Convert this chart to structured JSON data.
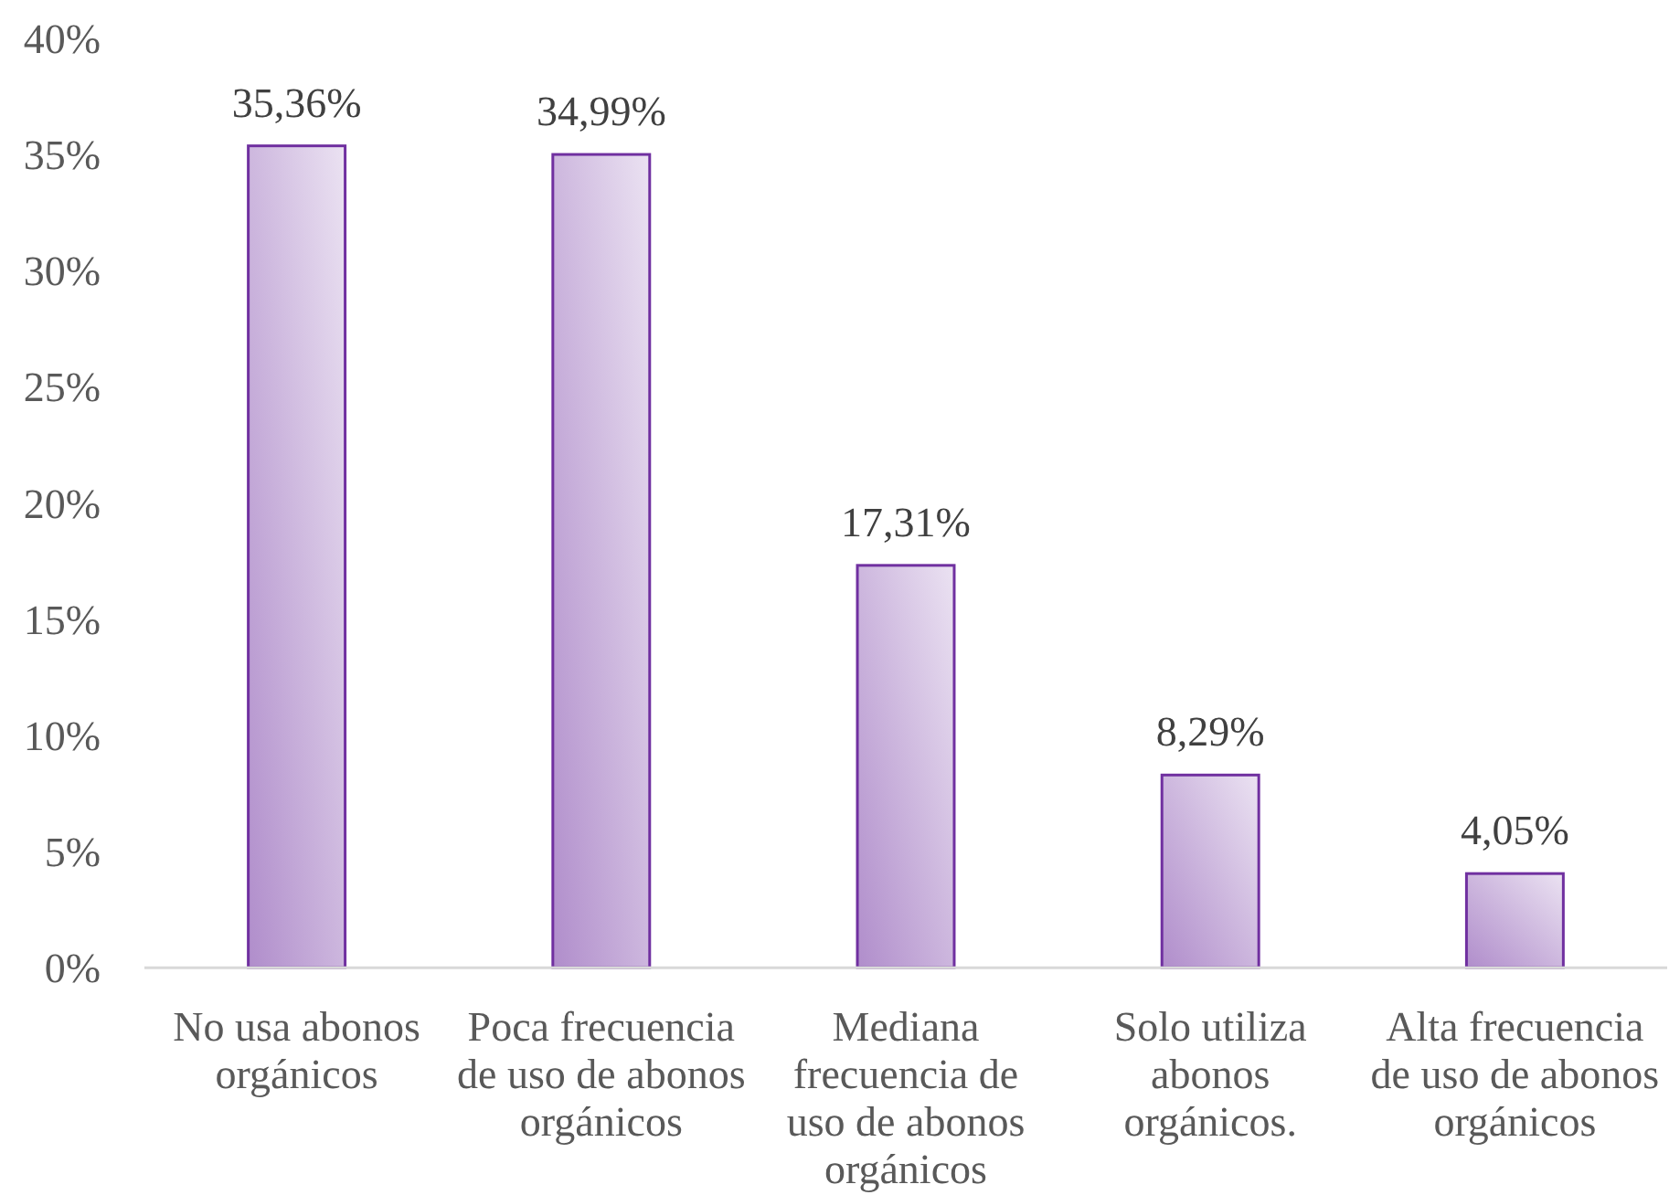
{
  "chart_data": {
    "type": "bar",
    "categories": [
      "No usa abonos orgánicos",
      "Poca frecuencia de uso de abonos orgánicos",
      "Mediana frecuencia de uso de abonos orgánicos",
      "Solo utiliza abonos orgánicos.",
      "Alta frecuencia de uso de abonos orgánicos"
    ],
    "values": [
      35.36,
      34.99,
      17.31,
      8.29,
      4.05
    ],
    "value_labels": [
      "35,36%",
      "34,99%",
      "17,31%",
      "8,29%",
      "4,05%"
    ],
    "color": "#7030a0",
    "ylim": [
      0,
      40
    ],
    "yticks": [
      {
        "value": 0,
        "label": "0%"
      },
      {
        "value": 5,
        "label": "5%"
      },
      {
        "value": 10,
        "label": "10%"
      },
      {
        "value": 15,
        "label": "15%"
      },
      {
        "value": 20,
        "label": "20%"
      },
      {
        "value": 25,
        "label": "25%"
      },
      {
        "value": 30,
        "label": "30%"
      },
      {
        "value": 35,
        "label": "35%"
      },
      {
        "value": 40,
        "label": "40%"
      }
    ]
  }
}
